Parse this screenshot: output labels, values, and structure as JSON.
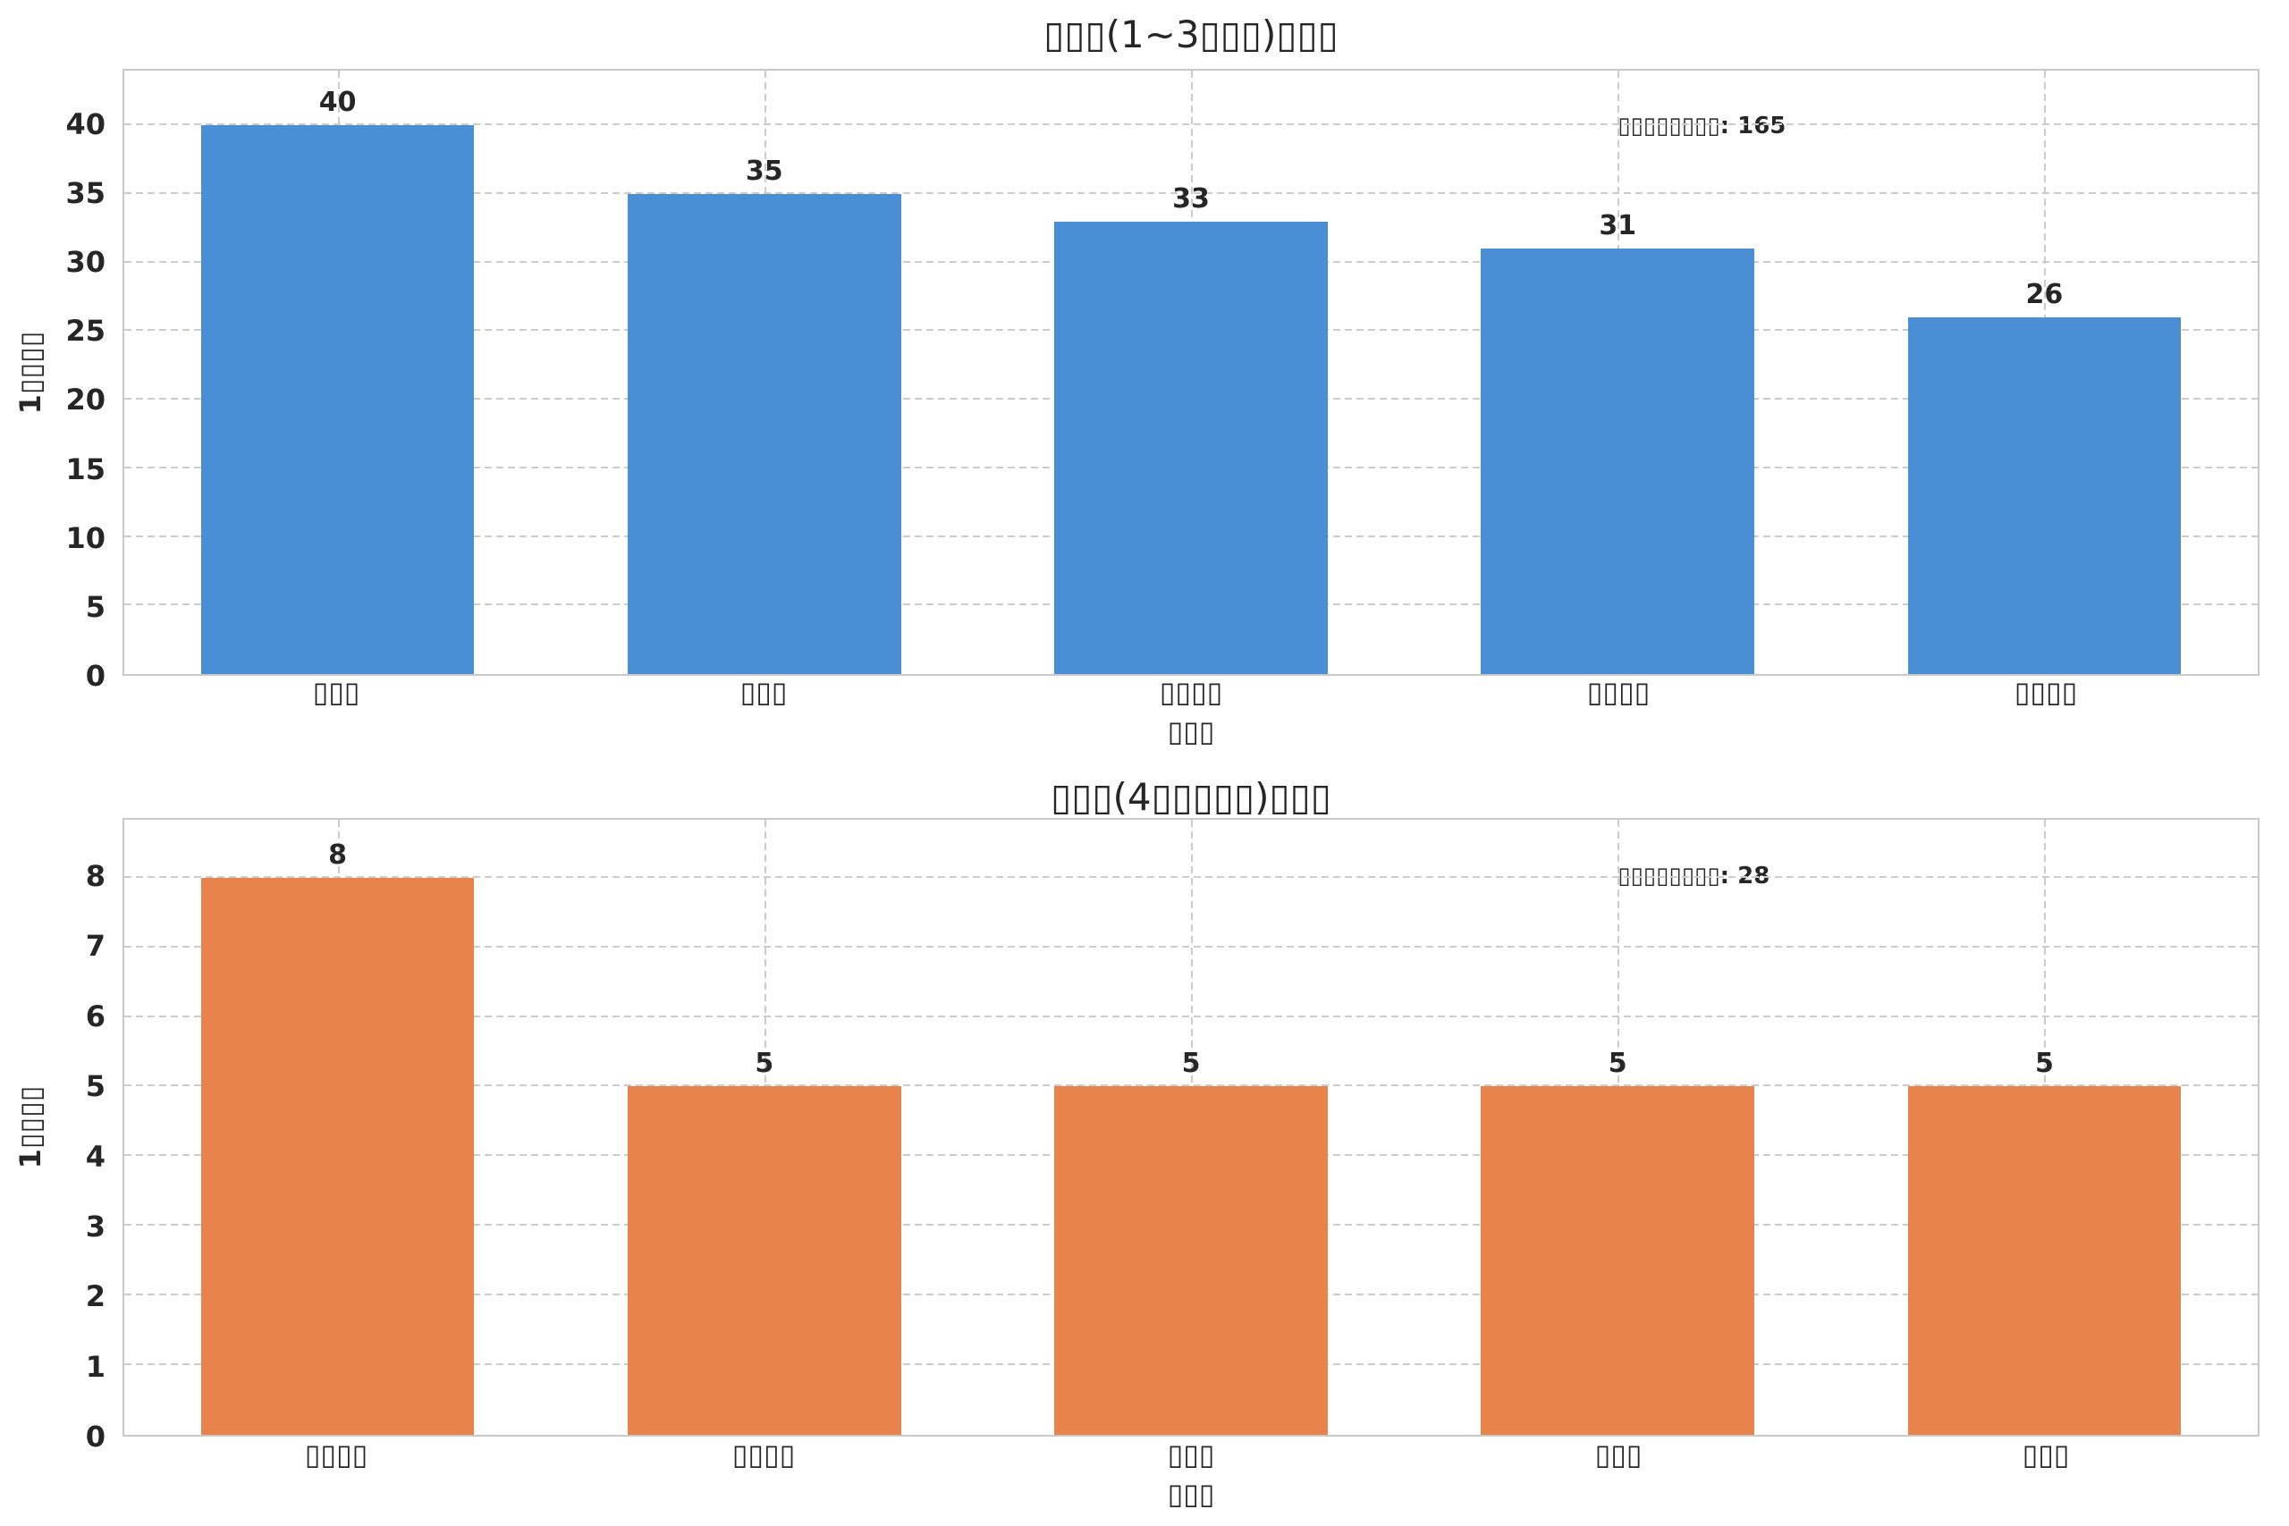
{
  "style": {
    "background": "#ffffff",
    "grid_color": "#cccccc",
    "spine_color": "#c9c9c9",
    "text_color": "#262626"
  },
  "chart_data": [
    {
      "type": "bar",
      "title": "▯▯▯(1~3▯▯▯)▯▯▯",
      "xlabel": "▯▯▯",
      "ylabel": "1▯▯▯▯",
      "categories": [
        "▯▯▯",
        "▯▯▯",
        "▯▯▯▯",
        "▯▯▯▯",
        "▯▯▯▯"
      ],
      "values": [
        40,
        35,
        33,
        31,
        26
      ],
      "bar_value_labels": [
        "40",
        "35",
        "33",
        "31",
        "26"
      ],
      "yticks": [
        0,
        5,
        10,
        15,
        20,
        25,
        30,
        35,
        40
      ],
      "ylim": [
        0,
        44
      ],
      "annotation": "▯▯▯▯▯▯▯▯: 165",
      "bar_color": "#4A8ED6",
      "grid": true,
      "legend": false
    },
    {
      "type": "bar",
      "title": "▯▯▯(4▯▯▯▯▯)▯▯▯",
      "xlabel": "▯▯▯",
      "ylabel": "1▯▯▯▯",
      "categories": [
        "▯▯▯▯",
        "▯▯▯▯",
        "▯▯▯",
        "▯▯▯",
        "▯▯▯"
      ],
      "values": [
        8,
        5,
        5,
        5,
        5
      ],
      "bar_value_labels": [
        "8",
        "5",
        "5",
        "5",
        "5"
      ],
      "yticks": [
        0,
        1,
        2,
        3,
        4,
        5,
        6,
        7,
        8
      ],
      "ylim": [
        0,
        8.83
      ],
      "annotation": "▯▯▯▯▯▯▯▯: 28",
      "bar_color": "#E8834B",
      "grid": true,
      "legend": false
    }
  ]
}
